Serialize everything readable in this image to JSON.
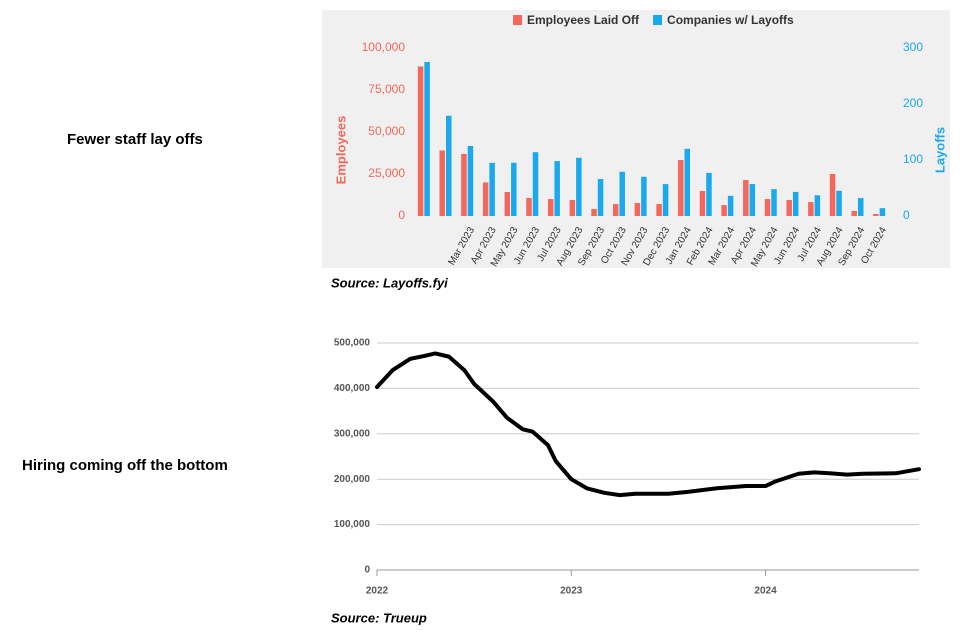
{
  "labels": {
    "left_top": "Fewer staff lay offs",
    "left_bottom": "Hiring coming off the bottom",
    "source_top": "Source: Layoffs.fyi",
    "source_bottom": "Source: Trueup"
  },
  "chart_data": [
    {
      "type": "bar",
      "categories": [
        null,
        null,
        "Mar 2023",
        "Apr 2023",
        "May 2023",
        "Jun 2023",
        "Jul 2023",
        "Aug 2023",
        "Sep 2023",
        "Oct 2023",
        "Nov 2023",
        "Dec 2023",
        "Jan 2024",
        "Feb 2024",
        "Mar 2024",
        "Apr 2024",
        "May 2024",
        "Jun 2024",
        "Jul 2024",
        "Aug 2024",
        "Sep 2024",
        "Oct 2024"
      ],
      "series": [
        {
          "name": "Employees Laid Off",
          "color": "#f4675b",
          "values": [
            89000,
            39000,
            37000,
            20000,
            14300,
            10700,
            10100,
            9500,
            4200,
            7100,
            7700,
            7100,
            33300,
            14900,
            6500,
            21400,
            10100,
            9500,
            8300,
            25000,
            3000,
            1200
          ]
        },
        {
          "name": "Companies w/ Layoffs",
          "color": "#1aa9ec",
          "axis": "y2",
          "values": [
            275,
            179,
            125,
            95,
            95,
            114,
            98,
            104,
            66,
            79,
            70,
            57,
            120,
            77,
            36,
            57,
            48,
            43,
            37,
            45,
            32,
            14
          ]
        }
      ],
      "ylabel": "Employees",
      "y2label": "Layoffs",
      "ylim": [
        0,
        100000
      ],
      "yticks": [
        0,
        {
          "value": 25000,
          "label": "25,000"
        },
        {
          "value": 50000,
          "label": "50,000"
        },
        {
          "value": 75000,
          "label": "75,000"
        },
        {
          "value": 100000,
          "label": "100,000"
        }
      ],
      "y2lim": [
        0,
        300
      ],
      "y2ticks": [
        0,
        100,
        200,
        300
      ],
      "grid": false,
      "legend": "top"
    },
    {
      "type": "line",
      "x": [
        2022.0,
        2022.08,
        2022.17,
        2022.25,
        2022.3,
        2022.37,
        2022.45,
        2022.5,
        2022.6,
        2022.67,
        2022.75,
        2022.8,
        2022.88,
        2022.92,
        2023.0,
        2023.08,
        2023.17,
        2023.25,
        2023.33,
        2023.5,
        2023.6,
        2023.75,
        2023.9,
        2024.0,
        2024.05,
        2024.17,
        2024.25,
        2024.33,
        2024.42,
        2024.5,
        2024.67,
        2024.79
      ],
      "series": [
        {
          "color": "#000000",
          "values": [
            403000,
            440000,
            465000,
            472000,
            477000,
            470000,
            440000,
            410000,
            370000,
            335000,
            310000,
            305000,
            275000,
            240000,
            200000,
            180000,
            170000,
            165000,
            168000,
            168000,
            172000,
            180000,
            185000,
            185000,
            195000,
            212000,
            215000,
            213000,
            210000,
            212000,
            213000,
            222000
          ]
        }
      ],
      "xlim": [
        2022,
        2024.79
      ],
      "xticks": [
        2022,
        2023,
        2024
      ],
      "ylim": [
        0,
        500000
      ],
      "yticks": [
        0,
        {
          "value": 100000,
          "label": "100,000"
        },
        {
          "value": 200000,
          "label": "200,000"
        },
        {
          "value": 300000,
          "label": "300,000"
        },
        {
          "value": 400000,
          "label": "400,000"
        },
        {
          "value": 500000,
          "label": "500,000"
        }
      ],
      "grid": true
    }
  ]
}
